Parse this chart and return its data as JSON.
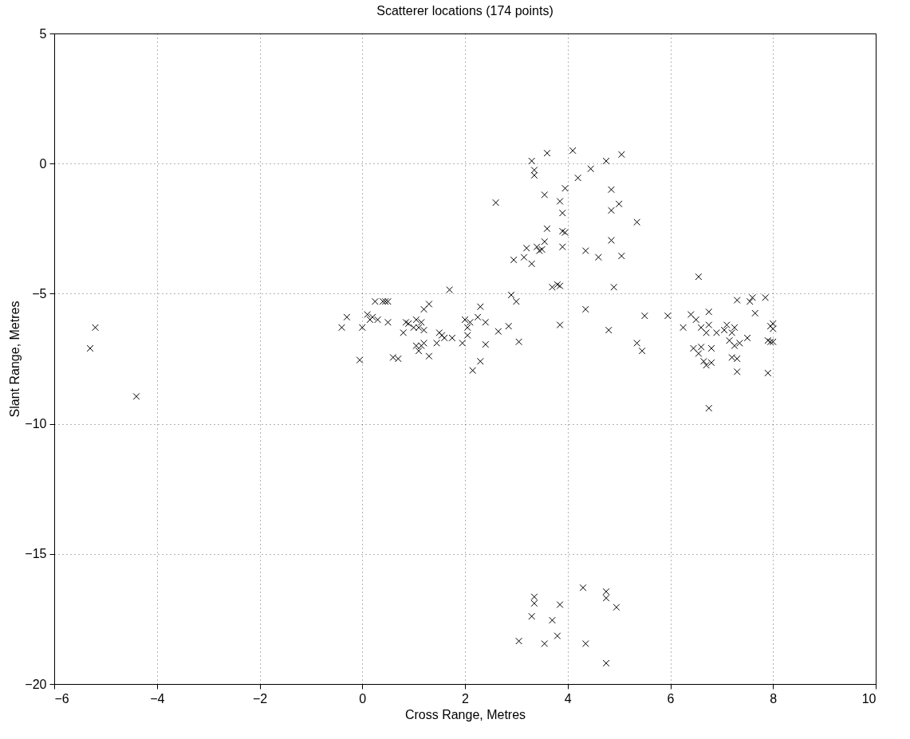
{
  "chart_data": {
    "type": "scatter",
    "title": "Scatterer locations (174 points)",
    "xlabel": "Cross Range, Metres",
    "ylabel": "Slant Range, Metres",
    "xlim": [
      -6,
      10
    ],
    "xticks": [
      -6,
      -4,
      -2,
      0,
      2,
      4,
      6,
      8,
      10
    ],
    "ylim": [
      -20,
      5
    ],
    "yticks": [
      -20,
      -15,
      -10,
      -5,
      0,
      5
    ],
    "grid": true,
    "marker": "cross",
    "series": [
      {
        "color": "#000000",
        "x": [
          -5.3,
          -5.2,
          -4.4,
          -0.4,
          -0.3,
          -0.05,
          0,
          0.1,
          0.15,
          0.2,
          0.25,
          0.3,
          0.4,
          0.45,
          0.5,
          0.5,
          0.6,
          0.7,
          0.8,
          0.85,
          0.9,
          1.0,
          1.05,
          1.05,
          1.1,
          1.1,
          1.15,
          1.2,
          1.2,
          1.15,
          1.2,
          1.3,
          1.3,
          1.45,
          1.5,
          1.55,
          1.6,
          1.7,
          1.75,
          1.95,
          2.0,
          2.05,
          2.05,
          2.1,
          2.15,
          2.25,
          2.3,
          2.3,
          2.4,
          2.4,
          2.6,
          2.65,
          2.85,
          2.9,
          3.0,
          3.05,
          2.95,
          3.15,
          3.2,
          3.3,
          3.3,
          3.35,
          3.35,
          3.4,
          3.45,
          3.5,
          3.55,
          3.55,
          3.6,
          3.6,
          3.7,
          3.8,
          3.85,
          3.85,
          3.85,
          3.9,
          3.9,
          3.9,
          3.95,
          3.95,
          4.1,
          4.2,
          4.35,
          4.35,
          4.45,
          4.6,
          4.75,
          4.8,
          4.85,
          4.85,
          4.85,
          4.9,
          5.0,
          5.05,
          5.05,
          5.35,
          5.35,
          5.45,
          5.5,
          5.95,
          6.25,
          6.4,
          6.45,
          6.5,
          6.55,
          6.55,
          6.6,
          6.6,
          6.65,
          6.7,
          6.7,
          6.75,
          6.75,
          6.75,
          6.8,
          6.8,
          6.9,
          7.05,
          7.1,
          7.15,
          7.2,
          7.2,
          7.25,
          7.25,
          7.3,
          7.3,
          7.3,
          7.35,
          7.5,
          7.55,
          7.6,
          7.65,
          7.85,
          7.9,
          7.9,
          7.95,
          8.0,
          8.0,
          8.0,
          7.95,
          3.05,
          3.3,
          3.35,
          3.35,
          3.55,
          3.7,
          3.8,
          3.85,
          4.3,
          4.35,
          4.75,
          4.75,
          4.75,
          4.95
        ],
        "values": [
          -7.1,
          -6.3,
          -8.95,
          -6.3,
          -5.9,
          -7.55,
          -6.3,
          -5.8,
          -6.0,
          -5.9,
          -5.3,
          -6.0,
          -5.3,
          -5.3,
          -6.1,
          -5.3,
          -7.45,
          -7.5,
          -6.5,
          -6.1,
          -6.15,
          -6.3,
          -6.0,
          -7.0,
          -6.3,
          -7.2,
          -6.1,
          -6.4,
          -5.6,
          -7.0,
          -6.9,
          -5.4,
          -7.4,
          -6.9,
          -6.5,
          -6.6,
          -6.7,
          -4.85,
          -6.7,
          -6.9,
          -6.0,
          -6.6,
          -6.3,
          -6.1,
          -7.95,
          -5.9,
          -7.6,
          -5.5,
          -6.1,
          -6.95,
          -1.5,
          -6.45,
          -6.25,
          -5.05,
          -5.3,
          -6.85,
          -3.7,
          -3.6,
          -3.25,
          0.1,
          -3.85,
          -0.25,
          -0.45,
          -3.2,
          -3.35,
          -3.3,
          -3.0,
          -1.2,
          -2.5,
          0.4,
          -4.75,
          -4.65,
          -1.45,
          -4.7,
          -6.2,
          -1.9,
          -2.6,
          -3.2,
          -0.95,
          -2.65,
          0.5,
          -0.55,
          -3.35,
          -5.6,
          -0.2,
          -3.6,
          0.1,
          -6.4,
          -1.0,
          -2.95,
          -1.8,
          -4.75,
          -1.55,
          0.35,
          -3.55,
          -2.25,
          -6.9,
          -7.2,
          -5.85,
          -5.85,
          -6.3,
          -5.8,
          -7.1,
          -6.0,
          -7.3,
          -4.35,
          -7.05,
          -6.3,
          -7.6,
          -6.5,
          -7.75,
          -6.2,
          -5.7,
          -9.4,
          -7.1,
          -7.65,
          -6.5,
          -6.4,
          -6.2,
          -6.8,
          -6.5,
          -7.45,
          -7.0,
          -6.3,
          -7.5,
          -5.25,
          -8.0,
          -6.9,
          -6.7,
          -5.3,
          -5.15,
          -5.75,
          -5.15,
          -6.8,
          -8.05,
          -6.25,
          -6.85,
          -6.15,
          -6.35,
          -6.85,
          -18.35,
          -17.4,
          -16.65,
          -16.9,
          -18.45,
          -17.55,
          -18.15,
          -16.95,
          -16.3,
          -18.45,
          -16.45,
          -16.7,
          -19.2,
          -17.05
        ]
      }
    ]
  }
}
